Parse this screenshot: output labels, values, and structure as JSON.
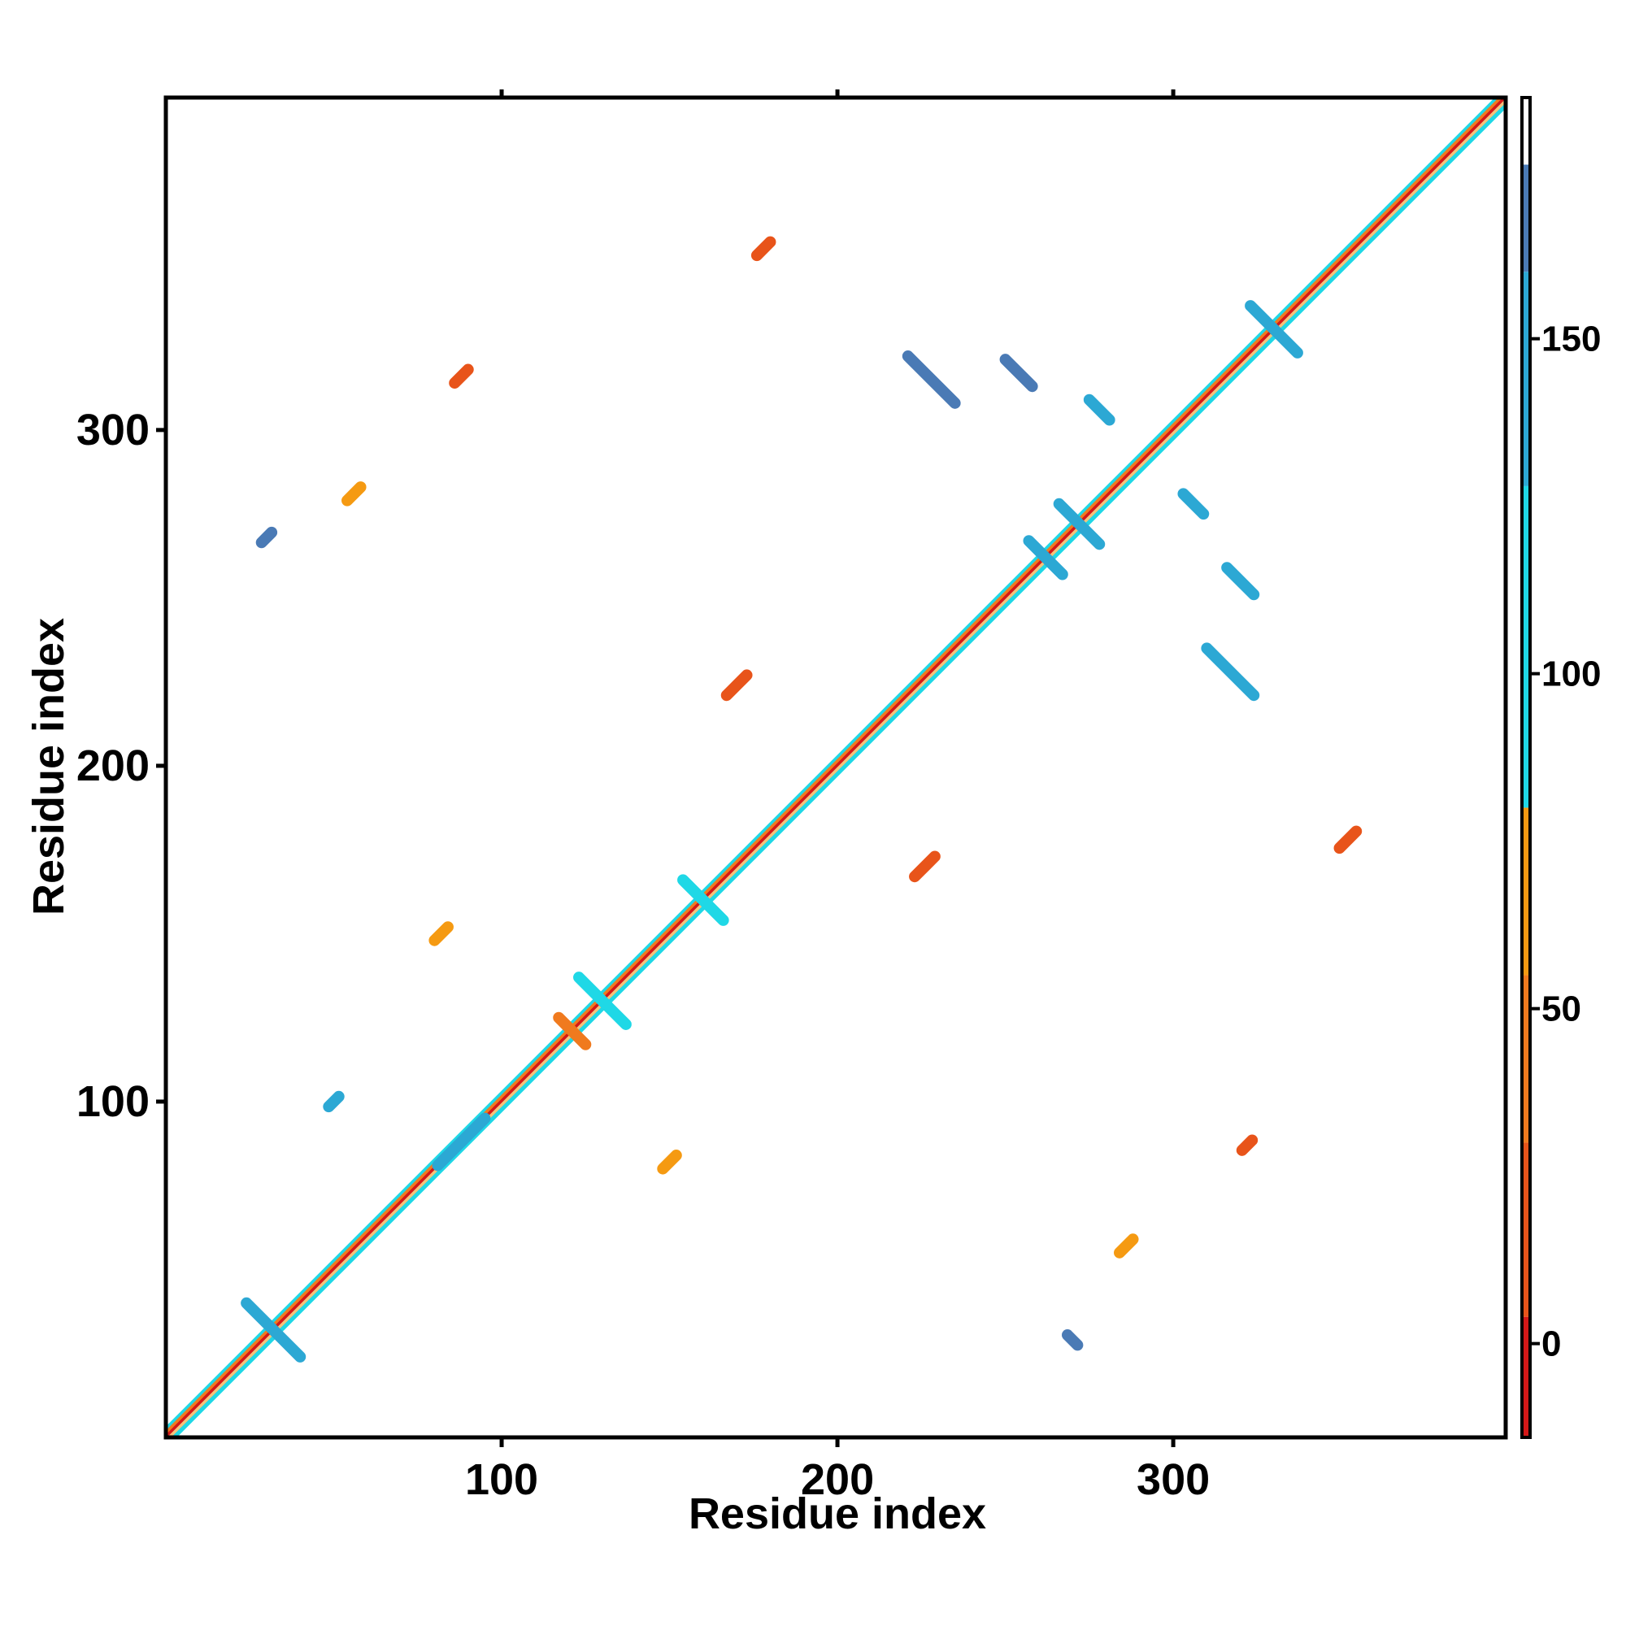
{
  "chart_data": {
    "type": "heatmap",
    "title": "",
    "xlabel": "Residue index",
    "ylabel": "Residue index",
    "xlim": [
      0,
      399
    ],
    "ylim": [
      0,
      399
    ],
    "x_ticks": [
      100,
      200,
      300
    ],
    "x_tick_labels": [
      "100",
      "200",
      "300"
    ],
    "y_ticks": [
      100,
      200,
      300
    ],
    "y_tick_labels": [
      "100",
      "200",
      "300"
    ],
    "grid": false,
    "colorbar": {
      "range": [
        -14,
        186
      ],
      "ticks": [
        0,
        50,
        100,
        150
      ],
      "tick_labels": [
        "0",
        "50",
        "100",
        "150"
      ],
      "bands": [
        {
          "from": -14,
          "to": 4,
          "color": "#d41818"
        },
        {
          "from": 4,
          "to": 30,
          "color": "#e8541a"
        },
        {
          "from": 30,
          "to": 55,
          "color": "#f07a1e"
        },
        {
          "from": 55,
          "to": 80,
          "color": "#f59a12"
        },
        {
          "from": 80,
          "to": 128,
          "color": "#1fd8e6"
        },
        {
          "from": 128,
          "to": 160,
          "color": "#2ca8d4"
        },
        {
          "from": 160,
          "to": 176,
          "color": "#4a7ab5"
        },
        {
          "from": 176,
          "to": 186,
          "color": "#ffffff"
        }
      ]
    },
    "diagonal_band": {
      "from": 0,
      "to": 399,
      "colors": [
        "#d41818",
        "#f07a1e",
        "#1fd8e6",
        "#f5c27a"
      ]
    },
    "contact_patches": [
      {
        "x": 32,
        "y": 32,
        "orientation": "anti",
        "length": 16,
        "color": "#2ca8d4"
      },
      {
        "x": 88,
        "y": 88,
        "orientation": "parallel",
        "length": 14,
        "color": "#2ca8d4"
      },
      {
        "x": 130,
        "y": 130,
        "orientation": "anti",
        "length": 14,
        "color": "#1fd8e6"
      },
      {
        "x": 160,
        "y": 160,
        "orientation": "anti",
        "length": 12,
        "color": "#1fd8e6"
      },
      {
        "x": 272,
        "y": 272,
        "orientation": "anti",
        "length": 12,
        "color": "#2ca8d4"
      },
      {
        "x": 262,
        "y": 262,
        "orientation": "anti",
        "length": 10,
        "color": "#2ca8d4"
      },
      {
        "x": 330,
        "y": 330,
        "orientation": "anti",
        "length": 14,
        "color": "#2ca8d4"
      },
      {
        "x": 178,
        "y": 354,
        "orientation": "parallel",
        "length": 4,
        "color": "#e8541a"
      },
      {
        "x": 170,
        "y": 224,
        "orientation": "parallel",
        "length": 6,
        "color": "#e8541a"
      },
      {
        "x": 226,
        "y": 170,
        "orientation": "parallel",
        "length": 6,
        "color": "#e8541a"
      },
      {
        "x": 352,
        "y": 178,
        "orientation": "parallel",
        "length": 5,
        "color": "#e8541a"
      },
      {
        "x": 228,
        "y": 315,
        "orientation": "anti",
        "length": 14,
        "color": "#4a7ab5"
      },
      {
        "x": 254,
        "y": 317,
        "orientation": "anti",
        "length": 8,
        "color": "#4a7ab5"
      },
      {
        "x": 278,
        "y": 306,
        "orientation": "anti",
        "length": 6,
        "color": "#2ca8d4"
      },
      {
        "x": 317,
        "y": 228,
        "orientation": "anti",
        "length": 14,
        "color": "#2ca8d4"
      },
      {
        "x": 320,
        "y": 255,
        "orientation": "anti",
        "length": 8,
        "color": "#2ca8d4"
      },
      {
        "x": 306,
        "y": 278,
        "orientation": "anti",
        "length": 6,
        "color": "#2ca8d4"
      },
      {
        "x": 56,
        "y": 281,
        "orientation": "parallel",
        "length": 4,
        "color": "#f59a12"
      },
      {
        "x": 121,
        "y": 121,
        "orientation": "anti",
        "length": 8,
        "color": "#f07a1e"
      },
      {
        "x": 82,
        "y": 150,
        "orientation": "parallel",
        "length": 4,
        "color": "#f59a12"
      },
      {
        "x": 150,
        "y": 82,
        "orientation": "parallel",
        "length": 4,
        "color": "#f59a12"
      },
      {
        "x": 286,
        "y": 57,
        "orientation": "parallel",
        "length": 4,
        "color": "#f59a12"
      },
      {
        "x": 322,
        "y": 87,
        "orientation": "parallel",
        "length": 3,
        "color": "#e8541a"
      },
      {
        "x": 270,
        "y": 29,
        "orientation": "anti",
        "length": 3,
        "color": "#4a7ab5"
      },
      {
        "x": 50,
        "y": 100,
        "orientation": "parallel",
        "length": 3,
        "color": "#2ca8d4"
      },
      {
        "x": 30,
        "y": 268,
        "orientation": "parallel",
        "length": 3,
        "color": "#4a7ab5"
      },
      {
        "x": 88,
        "y": 316,
        "orientation": "parallel",
        "length": 4,
        "color": "#e8541a"
      }
    ]
  }
}
